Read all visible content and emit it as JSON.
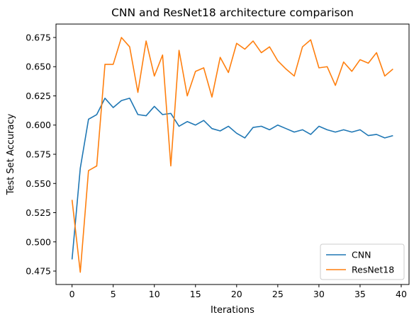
{
  "chart_data": {
    "type": "line",
    "title": "CNN and ResNet18 architecture comparison",
    "xlabel": "Iterations",
    "ylabel": "Test Set Accuracy",
    "xlim": [
      -1.95,
      40.95
    ],
    "ylim": [
      0.4635,
      0.6865
    ],
    "xticks": [
      0,
      5,
      10,
      15,
      20,
      25,
      30,
      35,
      40
    ],
    "xtick_labels": [
      "0",
      "5",
      "10",
      "15",
      "20",
      "25",
      "30",
      "35",
      "40"
    ],
    "yticks": [
      0.475,
      0.5,
      0.525,
      0.55,
      0.575,
      0.6,
      0.625,
      0.65,
      0.675
    ],
    "ytick_labels": [
      "0.475",
      "0.500",
      "0.525",
      "0.550",
      "0.575",
      "0.600",
      "0.625",
      "0.650",
      "0.675"
    ],
    "grid": false,
    "legend_position": "lower-right",
    "x": [
      0,
      1,
      2,
      3,
      4,
      5,
      6,
      7,
      8,
      9,
      10,
      11,
      12,
      13,
      14,
      15,
      16,
      17,
      18,
      19,
      20,
      21,
      22,
      23,
      24,
      25,
      26,
      27,
      28,
      29,
      30,
      31,
      32,
      33,
      34,
      35,
      36,
      37,
      38,
      39
    ],
    "series": [
      {
        "name": "CNN",
        "color": "#1f77b4",
        "values": [
          0.485,
          0.563,
          0.605,
          0.609,
          0.623,
          0.615,
          0.621,
          0.623,
          0.609,
          0.608,
          0.616,
          0.609,
          0.61,
          0.599,
          0.603,
          0.6,
          0.604,
          0.597,
          0.595,
          0.599,
          0.593,
          0.589,
          0.598,
          0.599,
          0.596,
          0.6,
          0.597,
          0.594,
          0.596,
          0.592,
          0.599,
          0.596,
          0.594,
          0.596,
          0.594,
          0.596,
          0.591,
          0.592,
          0.589,
          0.591
        ]
      },
      {
        "name": "ResNet18",
        "color": "#ff7f0e",
        "values": [
          0.536,
          0.474,
          0.561,
          0.565,
          0.652,
          0.652,
          0.675,
          0.667,
          0.628,
          0.672,
          0.642,
          0.66,
          0.565,
          0.664,
          0.625,
          0.646,
          0.649,
          0.624,
          0.658,
          0.645,
          0.67,
          0.665,
          0.672,
          0.662,
          0.667,
          0.655,
          0.648,
          0.642,
          0.667,
          0.673,
          0.649,
          0.65,
          0.634,
          0.654,
          0.646,
          0.656,
          0.653,
          0.662,
          0.642,
          0.648
        ]
      }
    ]
  }
}
